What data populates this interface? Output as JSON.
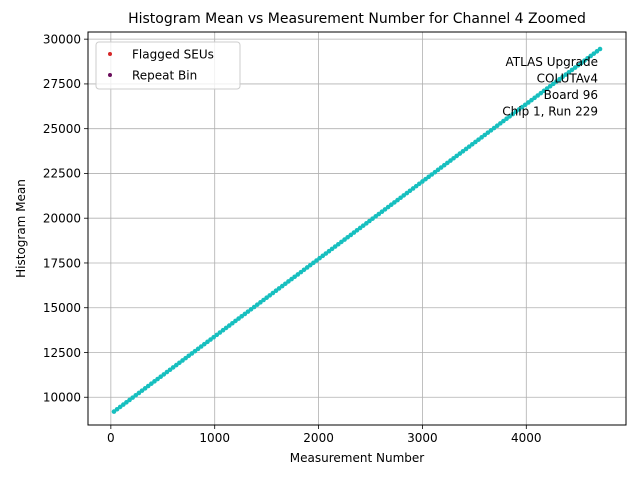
{
  "chart_data": {
    "type": "scatter",
    "title": "Histogram Mean vs Measurement Number for Channel 4 Zoomed",
    "xlabel": "Measurement Number",
    "ylabel": "Histogram Mean",
    "xlim": [
      -220,
      4960
    ],
    "ylim": [
      8450,
      30400
    ],
    "xticks": [
      0,
      1000,
      2000,
      3000,
      4000
    ],
    "xtick_labels": [
      "0",
      "1000",
      "2000",
      "3000",
      "4000"
    ],
    "yticks": [
      10000,
      12500,
      15000,
      17500,
      20000,
      22500,
      25000,
      27500,
      30000
    ],
    "ytick_labels": [
      "10000",
      "12500",
      "15000",
      "17500",
      "20000",
      "22500",
      "25000",
      "27500",
      "30000"
    ],
    "grid": true,
    "legend_position": "top-left",
    "legend": [
      {
        "label": "Flagged SEUs",
        "color": "#d62728"
      },
      {
        "label": "Repeat Bin",
        "color": "#6a0d5c"
      }
    ],
    "annotation_lines": [
      "ATLAS Upgrade",
      "COLUTAv4",
      "Board 96",
      "Chip 1, Run 229"
    ],
    "series": [
      {
        "color": "#17bfbf",
        "x_start": 30,
        "x_end": 4710,
        "x_step": 30,
        "y_start": 9200,
        "y_end": 29450
      }
    ]
  }
}
